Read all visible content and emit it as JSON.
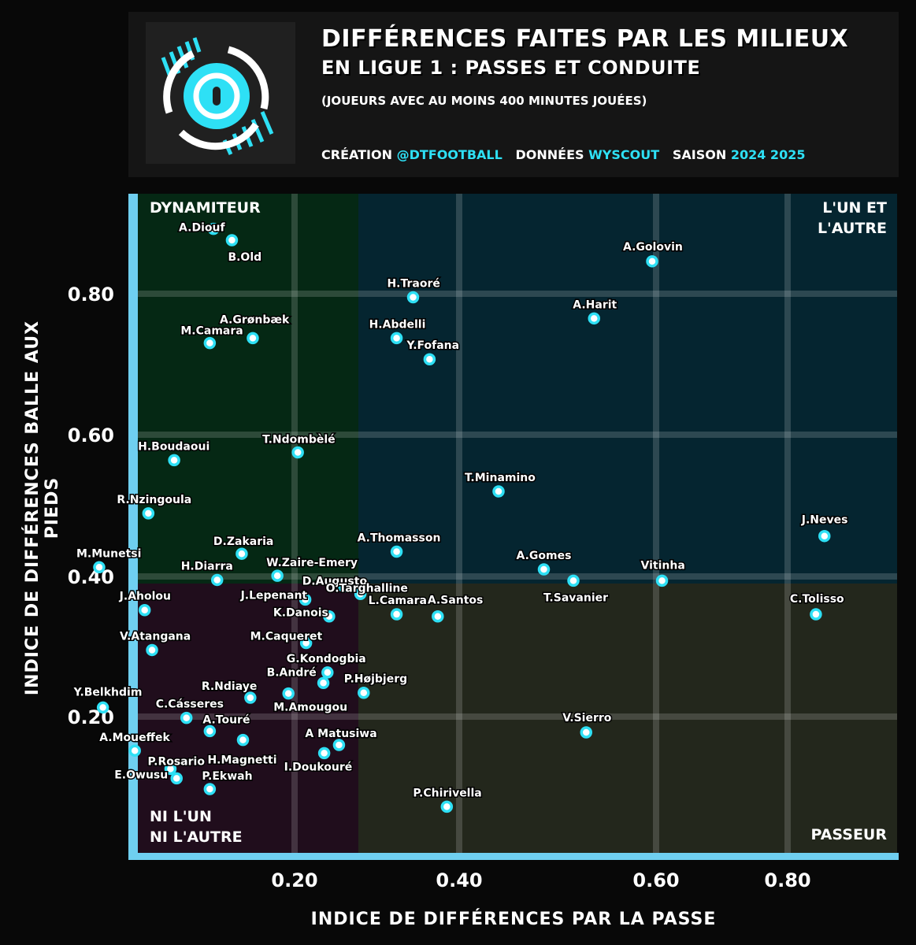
{
  "header": {
    "title_line1": "DIFFÉRENCES FAITES PAR LES MILIEUX",
    "title_line2": "EN LIGUE 1 : PASSES ET CONDUITE",
    "subtitle": "(JOUEURS AVEC AU MOINS 400 MINUTES JOUÉES)",
    "creation_label": "CRÉATION",
    "creation_value": "@DTFOOTBALL",
    "data_label": "DONNÉES",
    "data_value": "WYSCOUT",
    "season_label": "SAISON",
    "season_value": "2024 2025"
  },
  "colors": {
    "accent": "#2ee0f5",
    "axis": "#6fcff0",
    "quadrant_dynamiteur": "#052814",
    "quadrant_both": "#052530",
    "quadrant_neither": "#200d1c",
    "quadrant_passeur": "#23271c"
  },
  "chart_data": {
    "type": "scatter",
    "xlabel": "INDICE DE DIFFÉRENCES PAR LA PASSE",
    "ylabel": "INDICE DE DIFFÉRENCES BALLE AUX PIEDS",
    "x_ticks": [
      "0.20",
      "0.40",
      "0.60",
      "0.80"
    ],
    "y_ticks": [
      "0.80",
      "0.60",
      "0.40",
      "0.20"
    ],
    "quadrant_labels": {
      "top_left": [
        "DYNAMITEUR"
      ],
      "top_right": [
        "L'UN ET",
        "L'AUTRE"
      ],
      "bottom_left": [
        "NI L'UN",
        "NI L'AUTRE"
      ],
      "bottom_right": [
        "PASSEUR"
      ]
    },
    "points": [
      {
        "label": "A.Diouf",
        "x": 0.134,
        "y": 0.892
      },
      {
        "label": "B.Old",
        "x": 0.149,
        "y": 0.876
      },
      {
        "label": "A.Golovin",
        "x": 0.596,
        "y": 0.846
      },
      {
        "label": "H.Traoré",
        "x": 0.344,
        "y": 0.795
      },
      {
        "label": "A.Harit",
        "x": 0.537,
        "y": 0.765
      },
      {
        "label": "H.Abdelli",
        "x": 0.324,
        "y": 0.737
      },
      {
        "label": "M.Camara",
        "x": 0.131,
        "y": 0.73
      },
      {
        "label": "A.Grønbæk",
        "x": 0.166,
        "y": 0.737
      },
      {
        "label": "Y.Fofana",
        "x": 0.364,
        "y": 0.707
      },
      {
        "label": "T.Ndombèlé",
        "x": 0.204,
        "y": 0.575
      },
      {
        "label": "H.Boudaoui",
        "x": 0.102,
        "y": 0.564
      },
      {
        "label": "T.Minamino",
        "x": 0.44,
        "y": 0.52
      },
      {
        "label": "R.Nzingoula",
        "x": 0.081,
        "y": 0.489
      },
      {
        "label": "J.Neves",
        "x": 0.856,
        "y": 0.457
      },
      {
        "label": "A.Thomasson",
        "x": 0.324,
        "y": 0.435
      },
      {
        "label": "D.Zakaria",
        "x": 0.157,
        "y": 0.432
      },
      {
        "label": "M.Munetsi",
        "x": 0.041,
        "y": 0.413
      },
      {
        "label": "A.Gomes",
        "x": 0.486,
        "y": 0.41
      },
      {
        "label": "W.Zaire-Emery",
        "x": 0.186,
        "y": 0.401
      },
      {
        "label": "H.Diarra",
        "x": 0.137,
        "y": 0.395
      },
      {
        "label": "Vitinha",
        "x": 0.609,
        "y": 0.394
      },
      {
        "label": "T.Savanier",
        "x": 0.516,
        "y": 0.394
      },
      {
        "label": "D.Augusto",
        "x": 0.26,
        "y": 0.386
      },
      {
        "label": "O.Targhalline",
        "x": 0.28,
        "y": 0.375
      },
      {
        "label": "J.Lepenant",
        "x": 0.213,
        "y": 0.367
      },
      {
        "label": "J.Aholou",
        "x": 0.078,
        "y": 0.352
      },
      {
        "label": "K.Danois",
        "x": 0.242,
        "y": 0.343
      },
      {
        "label": "L.Camara",
        "x": 0.324,
        "y": 0.346
      },
      {
        "label": "A.Santos",
        "x": 0.374,
        "y": 0.343
      },
      {
        "label": "C.Tolisso",
        "x": 0.843,
        "y": 0.346
      },
      {
        "label": "M.Caqueret",
        "x": 0.214,
        "y": 0.305
      },
      {
        "label": "V.Atangana",
        "x": 0.084,
        "y": 0.295
      },
      {
        "label": "G.Kondogbia",
        "x": 0.24,
        "y": 0.263
      },
      {
        "label": "B.André",
        "x": 0.235,
        "y": 0.248
      },
      {
        "label": "R.Ndiaye",
        "x": 0.164,
        "y": 0.227
      },
      {
        "label": "M.Amougou",
        "x": 0.195,
        "y": 0.233
      },
      {
        "label": "P.Højbjerg",
        "x": 0.284,
        "y": 0.234
      },
      {
        "label": "Y.Belkhdim",
        "x": 0.044,
        "y": 0.213
      },
      {
        "label": "C.Cásseres",
        "x": 0.112,
        "y": 0.198
      },
      {
        "label": "A.Touré",
        "x": 0.131,
        "y": 0.177
      },
      {
        "label": "V.Sierro",
        "x": 0.529,
        "y": 0.175
      },
      {
        "label": "H.Magnetti",
        "x": 0.158,
        "y": 0.163
      },
      {
        "label": "A Matusiwa",
        "x": 0.254,
        "y": 0.155
      },
      {
        "label": "A.Moueffek",
        "x": 0.07,
        "y": 0.146
      },
      {
        "label": "I.Doukouré",
        "x": 0.236,
        "y": 0.142
      },
      {
        "label": "P.Rosario",
        "x": 0.099,
        "y": 0.117
      },
      {
        "label": "E.Owusu",
        "x": 0.104,
        "y": 0.102
      },
      {
        "label": "P.Ekwah",
        "x": 0.131,
        "y": 0.085
      },
      {
        "label": "P.Chirivella",
        "x": 0.385,
        "y": 0.057
      }
    ]
  }
}
